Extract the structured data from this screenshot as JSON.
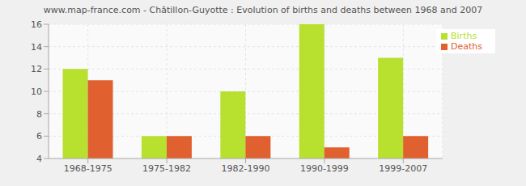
{
  "chart_data": {
    "type": "bar",
    "title": "www.map-france.com - Châtillon-Guyotte : Evolution of births and deaths between 1968 and 2007",
    "categories": [
      "1968-1975",
      "1975-1982",
      "1982-1990",
      "1990-1999",
      "1999-2007"
    ],
    "series": [
      {
        "name": "Births",
        "color": "#b8e02e",
        "values": [
          12,
          6,
          10,
          16,
          13
        ]
      },
      {
        "name": "Deaths",
        "color": "#e06030",
        "values": [
          11,
          6,
          6,
          5,
          6
        ]
      }
    ],
    "ylim": [
      4,
      16
    ],
    "yticks": [
      4,
      6,
      8,
      10,
      12,
      14,
      16
    ],
    "grid": true,
    "legend": "top-right"
  }
}
